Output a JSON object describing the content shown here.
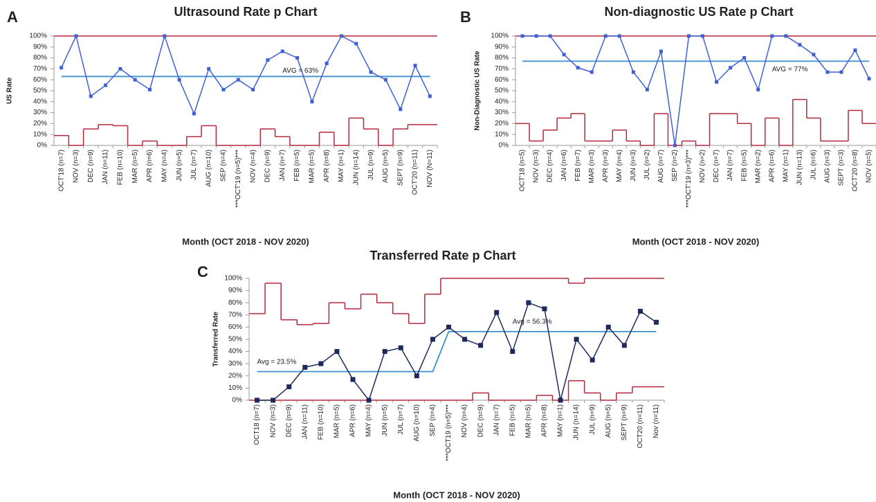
{
  "chart_data": [
    {
      "type": "line",
      "panel": "A",
      "title": "Ultrasound Rate p Chart",
      "y_label": "US Rate",
      "x_label": "Month (OCT 2018 - NOV 2020)",
      "categories": [
        "OCT'18 (n=7)",
        "NOV (n=3)",
        "DEC (n=9)",
        "JAN (n=11)",
        "FEB (n=10)",
        "MAR (n=5)",
        "APR (n=6)",
        "MAY (n=4)",
        "JUN (n=5)",
        "JUL (n=7)",
        "AUG (n=10)",
        "SEP (n=4)",
        "***OCT'19 (n=5)***",
        "NOV (n=4)",
        "DEC (n=9)",
        "JAN (n=7)",
        "FEB (n=5)",
        "MAR (n=5)",
        "APR (n=8)",
        "MAY (n=1)",
        "JUN (n=14)",
        "JUL (n=9)",
        "AUG (n=5)",
        "SEPT (n=9)",
        "OCT'20 (n=11)",
        "NOV (N=11)"
      ],
      "series": [
        {
          "color": "#b5263a",
          "style": "step",
          "values": [
            100,
            100,
            100,
            100,
            100,
            100,
            100,
            100,
            100,
            100,
            100,
            100,
            100,
            100,
            100,
            100,
            100,
            100,
            100,
            100,
            100,
            100,
            100,
            100,
            100,
            100
          ]
        },
        {
          "color": "#b5263a",
          "style": "step",
          "values": [
            9,
            0,
            15,
            19,
            18,
            0,
            4,
            0,
            0,
            8,
            18,
            0,
            0,
            0,
            15,
            8,
            0,
            0,
            12,
            0,
            25,
            15,
            0,
            15,
            19,
            19
          ]
        },
        {
          "color": "#3b8fd0",
          "style": "line",
          "values": [
            63,
            63,
            63,
            63,
            63,
            63,
            63,
            63,
            63,
            63,
            63,
            63,
            63,
            63,
            63,
            63,
            63,
            63,
            63,
            63,
            63,
            63,
            63,
            63,
            63,
            63
          ]
        },
        {
          "color": "#3f5fd6",
          "style": "markers",
          "values": [
            71,
            100,
            45,
            55,
            70,
            60,
            51,
            100,
            60,
            29,
            70,
            51,
            60,
            51,
            78,
            86,
            80,
            40,
            75,
            100,
            93,
            67,
            60,
            33,
            73,
            45
          ]
        }
      ],
      "annotations": [
        "AVG = 63%"
      ],
      "ylim": [
        0,
        100
      ],
      "yticks": [
        {
          "value": 0,
          "label": "0%"
        },
        {
          "value": 10,
          "label": "10%"
        },
        {
          "value": 20,
          "label": "20%"
        },
        {
          "value": 30,
          "label": "30%"
        },
        {
          "value": 40,
          "label": "40%"
        },
        {
          "value": 50,
          "label": "50%"
        },
        {
          "value": 60,
          "label": "60%"
        },
        {
          "value": 70,
          "label": "70%"
        },
        {
          "value": 80,
          "label": "80%"
        },
        {
          "value": 90,
          "label": "90%"
        },
        {
          "value": 100,
          "label": "100%"
        }
      ]
    },
    {
      "type": "line",
      "panel": "B",
      "title": "Non-diagnostic US Rate p Chart",
      "y_label": "Non-Diagnostic US Rate",
      "x_label": "Month (OCT 2018 - NOV 2020)",
      "categories": [
        "OCT'18 (n=5)",
        "NOV (n=3)",
        "DEC (n=4)",
        "JAN (n=6)",
        "FEB (n=7)",
        "MAR (n=3)",
        "APR (n=3)",
        "MAY (n=4)",
        "JUN (n=3)",
        "JUL (n=2)",
        "AUG (n=7)",
        "SEP (n=2)",
        "***OCT'19 (n=3)***",
        "NOV (n=2)",
        "DEC (n=7)",
        "JAN (n=7)",
        "FEB (n=5)",
        "MAR (n=2)",
        "APR (n=6)",
        "MAY (n=1)",
        "JUN (n=13)",
        "JUL (n=6)",
        "AUG (n=3)",
        "SEPT (n=3)",
        "OCT'20 (n=8)",
        "NOV (n=5)"
      ],
      "series": [
        {
          "color": "#b5263a",
          "style": "step",
          "values": [
            100,
            100,
            100,
            100,
            100,
            100,
            100,
            100,
            100,
            100,
            100,
            100,
            100,
            100,
            100,
            100,
            100,
            100,
            100,
            100,
            100,
            100,
            100,
            100,
            100,
            100
          ]
        },
        {
          "color": "#b5263a",
          "style": "step",
          "values": [
            20,
            4,
            14,
            25,
            29,
            4,
            4,
            14,
            4,
            0,
            29,
            0,
            4,
            0,
            29,
            29,
            20,
            0,
            25,
            0,
            42,
            25,
            4,
            4,
            32,
            20
          ]
        },
        {
          "color": "#3b8fd0",
          "style": "line",
          "values": [
            77,
            77,
            77,
            77,
            77,
            77,
            77,
            77,
            77,
            77,
            77,
            77,
            77,
            77,
            77,
            77,
            77,
            77,
            77,
            77,
            77,
            77,
            77,
            77,
            77,
            77
          ]
        },
        {
          "color": "#3f5fd6",
          "style": "markers",
          "values": [
            100,
            100,
            100,
            83,
            71,
            67,
            100,
            100,
            67,
            51,
            86,
            0,
            100,
            100,
            58,
            71,
            80,
            51,
            100,
            100,
            92,
            83,
            67,
            67,
            87,
            61
          ]
        }
      ],
      "annotations": [
        "AVG = 77%"
      ],
      "ylim": [
        0,
        100
      ],
      "yticks": [
        {
          "value": 0,
          "label": "0%"
        },
        {
          "value": 10,
          "label": "10%"
        },
        {
          "value": 20,
          "label": "20%"
        },
        {
          "value": 30,
          "label": "30%"
        },
        {
          "value": 40,
          "label": "40%"
        },
        {
          "value": 50,
          "label": "50%"
        },
        {
          "value": 60,
          "label": "60%"
        },
        {
          "value": 70,
          "label": "70%"
        },
        {
          "value": 80,
          "label": "80%"
        },
        {
          "value": 90,
          "label": "90%"
        },
        {
          "value": 100,
          "label": "100%"
        }
      ]
    },
    {
      "type": "line",
      "panel": "C",
      "title": "Transferred Rate p Chart",
      "y_label": "Transferred Rate",
      "x_label": "Month (OCT 2018 - NOV 2020)",
      "categories": [
        "OCT18 (n=7)",
        "NOV (n=3)",
        "DEC (n=9)",
        "JAN (n=11)",
        "FEB (n=10)",
        "MAR (n=5)",
        "APR (n=6)",
        "MAY (n=4)",
        "JUN (n=5)",
        "JUL (n=7)",
        "AUG (n=10)",
        "SEP (n=4)",
        "***OCT19 (n=5)***",
        "NOV (n=4)",
        "DEC (n=9)",
        "JAN (n=7)",
        "FEB (n=5)",
        "MAR (n=5)",
        "APR (n=8)",
        "MAY (n=1)",
        "JUN (n=14)",
        "JUL (n=9)",
        "AUG (n=5)",
        "SEPT (n=9)",
        "OCT20 (n=11)",
        "Nov (n=11)"
      ],
      "series": [
        {
          "color": "#b5263a",
          "style": "step",
          "values": [
            71,
            96,
            66,
            62,
            63,
            80,
            75,
            87,
            80,
            71,
            63,
            87,
            100,
            100,
            100,
            100,
            100,
            100,
            100,
            100,
            96,
            100,
            100,
            100,
            100,
            100
          ]
        },
        {
          "color": "#b5263a",
          "style": "step",
          "values": [
            0,
            0,
            0,
            0,
            0,
            0,
            0,
            0,
            0,
            0,
            0,
            0,
            0,
            0,
            6,
            0,
            0,
            0,
            4,
            0,
            16,
            6,
            0,
            6,
            11,
            11
          ]
        },
        {
          "color": "#3b8fd0",
          "style": "line",
          "values": [
            23.5,
            23.5,
            23.5,
            23.5,
            23.5,
            23.5,
            23.5,
            23.5,
            23.5,
            23.5,
            23.5,
            23.5,
            56.3,
            56.3,
            56.3,
            56.3,
            56.3,
            56.3,
            56.3,
            56.3,
            56.3,
            56.3,
            56.3,
            56.3,
            56.3,
            56.3
          ]
        },
        {
          "color": "#1c2a5c",
          "style": "markers",
          "values": [
            0,
            0,
            11,
            27,
            30,
            40,
            17,
            0,
            40,
            43,
            20,
            50,
            60,
            50,
            45,
            72,
            40,
            80,
            75,
            0,
            50,
            33,
            60,
            45,
            73,
            64
          ]
        }
      ],
      "annotations": [
        "Avg = 23.5%",
        "Avg = 56.3%"
      ],
      "ylim": [
        0,
        100
      ],
      "yticks": [
        {
          "value": 0,
          "label": "0%"
        },
        {
          "value": 10,
          "label": "10%"
        },
        {
          "value": 20,
          "label": "20%"
        },
        {
          "value": 30,
          "label": "30%"
        },
        {
          "value": 40,
          "label": "40%"
        },
        {
          "value": 50,
          "label": "50%"
        },
        {
          "value": 60,
          "label": "60%"
        },
        {
          "value": 70,
          "label": "70%"
        },
        {
          "value": 80,
          "label": "80%"
        },
        {
          "value": 90,
          "label": "90%"
        },
        {
          "value": 100,
          "label": "100%"
        }
      ]
    }
  ]
}
